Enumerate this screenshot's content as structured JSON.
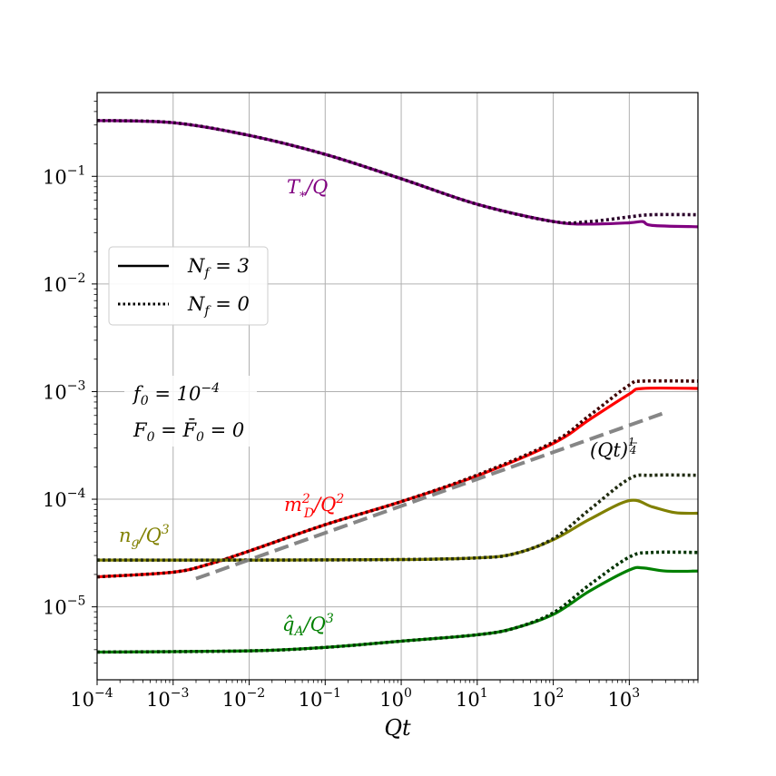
{
  "chart_data": {
    "type": "line",
    "xlabel": "Qt",
    "ylabel": "",
    "xscale": "log",
    "yscale": "log",
    "xlim": [
      0.0001,
      8000
    ],
    "ylim": [
      2.1e-06,
      0.6
    ],
    "grid": true,
    "x_ticks": [
      {
        "base": "10",
        "exp": "−4",
        "value": 0.0001
      },
      {
        "base": "10",
        "exp": "−3",
        "value": 0.001
      },
      {
        "base": "10",
        "exp": "−2",
        "value": 0.01
      },
      {
        "base": "10",
        "exp": "−1",
        "value": 0.1
      },
      {
        "base": "10",
        "exp": "0",
        "value": 1
      },
      {
        "base": "10",
        "exp": "1",
        "value": 10
      },
      {
        "base": "10",
        "exp": "2",
        "value": 100
      },
      {
        "base": "10",
        "exp": "3",
        "value": 1000
      }
    ],
    "y_ticks": [
      {
        "base": "10",
        "exp": "−5",
        "value": 1e-05
      },
      {
        "base": "10",
        "exp": "−4",
        "value": 0.0001
      },
      {
        "base": "10",
        "exp": "−3",
        "value": 0.001
      },
      {
        "base": "10",
        "exp": "−2",
        "value": 0.01
      },
      {
        "base": "10",
        "exp": "−1",
        "value": 0.1
      }
    ],
    "legend": {
      "placement": "center-left",
      "entries": [
        {
          "label": "N_f = 3",
          "style": "solid"
        },
        {
          "label": "N_f = 0",
          "style": "dotted"
        }
      ]
    },
    "annotations": {
      "params_line1": "f_0 = 10^{-4}",
      "params_line2": "F_0 = F̄_0 = 0",
      "scaling_label": "(Qt)^{1/4}"
    },
    "series": [
      {
        "name": "T_*/Q",
        "quantity": "temperature",
        "color": "#800080",
        "dotted_color": "#2a002a",
        "solid": [
          [
            0.0001,
            0.33
          ],
          [
            0.001,
            0.315
          ],
          [
            0.01,
            0.24
          ],
          [
            0.1,
            0.16
          ],
          [
            1,
            0.095
          ],
          [
            10,
            0.055
          ],
          [
            100,
            0.038
          ],
          [
            300,
            0.036
          ],
          [
            1000,
            0.037
          ],
          [
            1500,
            0.038
          ],
          [
            2000,
            0.035
          ],
          [
            8000,
            0.034
          ]
        ],
        "dotted": [
          [
            0.0001,
            0.33
          ],
          [
            0.001,
            0.315
          ],
          [
            0.01,
            0.24
          ],
          [
            0.1,
            0.16
          ],
          [
            1,
            0.095
          ],
          [
            10,
            0.055
          ],
          [
            100,
            0.038
          ],
          [
            300,
            0.038
          ],
          [
            1000,
            0.042
          ],
          [
            2000,
            0.044
          ],
          [
            8000,
            0.044
          ]
        ]
      },
      {
        "name": "m_D^2/Q^2",
        "quantity": "debye-mass",
        "color": "#ff0000",
        "dotted_color": "#400000",
        "solid": [
          [
            0.0001,
            1.9e-05
          ],
          [
            0.001,
            2.1e-05
          ],
          [
            0.003,
            2.5e-05
          ],
          [
            0.01,
            3.3e-05
          ],
          [
            0.1,
            5.8e-05
          ],
          [
            1,
            9.5e-05
          ],
          [
            10,
            0.000165
          ],
          [
            100,
            0.00033
          ],
          [
            300,
            0.00055
          ],
          [
            1000,
            0.00095
          ],
          [
            1500,
            0.00107
          ],
          [
            8000,
            0.00107
          ]
        ],
        "dotted": [
          [
            0.0001,
            1.9e-05
          ],
          [
            0.001,
            2.1e-05
          ],
          [
            0.003,
            2.5e-05
          ],
          [
            0.01,
            3.3e-05
          ],
          [
            0.1,
            5.8e-05
          ],
          [
            1,
            9.5e-05
          ],
          [
            10,
            0.000168
          ],
          [
            100,
            0.00034
          ],
          [
            300,
            0.0006
          ],
          [
            1000,
            0.00115
          ],
          [
            1500,
            0.00125
          ],
          [
            8000,
            0.00125
          ]
        ]
      },
      {
        "name": "n_g/Q^3",
        "quantity": "gluon-density",
        "color": "#808000",
        "dotted_color": "#202b10",
        "solid": [
          [
            0.0001,
            2.72e-05
          ],
          [
            0.01,
            2.72e-05
          ],
          [
            1,
            2.75e-05
          ],
          [
            10,
            2.85e-05
          ],
          [
            30,
            3.1e-05
          ],
          [
            100,
            4.2e-05
          ],
          [
            300,
            6.5e-05
          ],
          [
            1000,
            9.7e-05
          ],
          [
            2000,
            8.5e-05
          ],
          [
            4000,
            7.5e-05
          ],
          [
            8000,
            7.4e-05
          ]
        ],
        "dotted": [
          [
            0.0001,
            2.72e-05
          ],
          [
            0.01,
            2.72e-05
          ],
          [
            1,
            2.75e-05
          ],
          [
            10,
            2.85e-05
          ],
          [
            30,
            3.1e-05
          ],
          [
            100,
            4.3e-05
          ],
          [
            300,
            8e-05
          ],
          [
            1000,
            0.000155
          ],
          [
            2000,
            0.000167
          ],
          [
            8000,
            0.000167
          ]
        ]
      },
      {
        "name": "q̂_A/Q^3",
        "quantity": "jet-quenching",
        "color": "#008000",
        "dotted_color": "#003300",
        "solid": [
          [
            0.0001,
            3.8e-06
          ],
          [
            0.01,
            3.9e-06
          ],
          [
            0.1,
            4.2e-06
          ],
          [
            1,
            4.8e-06
          ],
          [
            10,
            5.5e-06
          ],
          [
            30,
            6.3e-06
          ],
          [
            100,
            8.5e-06
          ],
          [
            300,
            1.4e-05
          ],
          [
            1000,
            2.2e-05
          ],
          [
            1500,
            2.3e-05
          ],
          [
            3000,
            2.15e-05
          ],
          [
            8000,
            2.15e-05
          ]
        ],
        "dotted": [
          [
            0.0001,
            3.8e-06
          ],
          [
            0.01,
            3.9e-06
          ],
          [
            0.1,
            4.2e-06
          ],
          [
            1,
            4.8e-06
          ],
          [
            10,
            5.5e-06
          ],
          [
            30,
            6.3e-06
          ],
          [
            100,
            8.8e-06
          ],
          [
            300,
            1.6e-05
          ],
          [
            1000,
            2.9e-05
          ],
          [
            2000,
            3.2e-05
          ],
          [
            8000,
            3.2e-05
          ]
        ]
      },
      {
        "name": "(Qt)^{1/4}",
        "quantity": "scaling-reference",
        "color": "#808080",
        "style": "dashed",
        "solid": [
          [
            0.002,
            1.83e-05
          ],
          [
            2700,
            0.000623
          ]
        ]
      }
    ]
  }
}
